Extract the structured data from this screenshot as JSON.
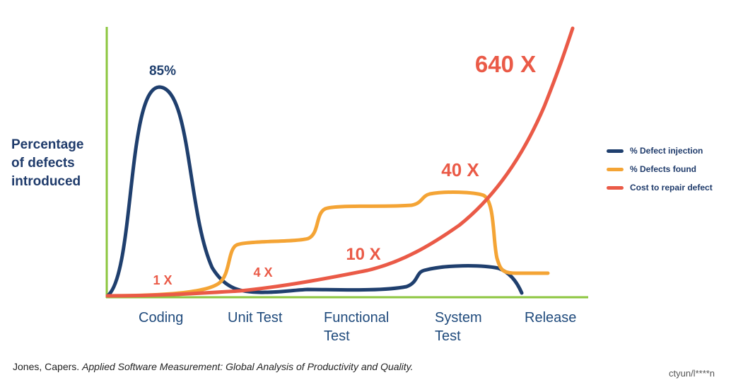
{
  "chart_data": {
    "type": "line",
    "ylabel_lines": [
      "Percentage",
      "of defects",
      "introduced"
    ],
    "categories": [
      {
        "lines": [
          "Coding"
        ]
      },
      {
        "lines": [
          "Unit Test"
        ]
      },
      {
        "lines": [
          "Functional",
          "Test"
        ]
      },
      {
        "lines": [
          "System",
          "Test"
        ]
      },
      {
        "lines": [
          "Release"
        ]
      }
    ],
    "series": [
      {
        "name": "% Defect injection",
        "color": "#1f3f6e"
      },
      {
        "name": "% Defects found",
        "color": "#f4a435"
      },
      {
        "name": "Cost to repair defect",
        "color": "#ea5a47"
      }
    ],
    "annotations": [
      {
        "text": "85%",
        "color": "#1f3f6e",
        "near": "injection-peak"
      },
      {
        "text": "1 X",
        "color": "#ea5a47",
        "near": "Coding"
      },
      {
        "text": "4 X",
        "color": "#ea5a47",
        "near": "Unit Test"
      },
      {
        "text": "10 X",
        "color": "#ea5a47",
        "near": "Functional Test"
      },
      {
        "text": "40 X",
        "color": "#ea5a47",
        "near": "System Test"
      },
      {
        "text": "640 X",
        "color": "#ea5a47",
        "near": "Release"
      }
    ],
    "axis_color": "#8cc63f",
    "legend_position": "right"
  },
  "source": {
    "author": "Jones, Capers.",
    "title": "Applied Software Measurement: Global Analysis of Productivity and Quality."
  },
  "watermark": "ctyun/l****n"
}
